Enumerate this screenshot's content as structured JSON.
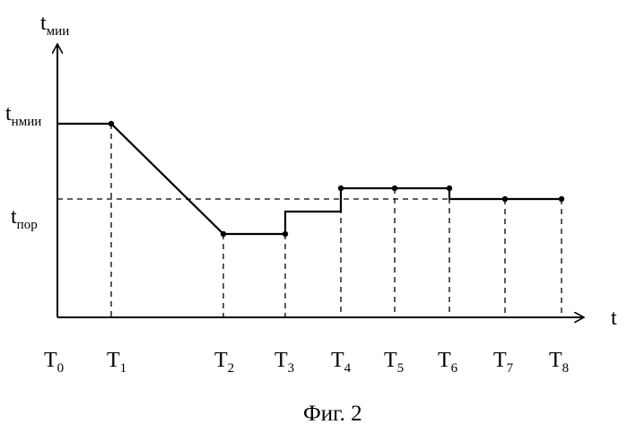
{
  "figure": {
    "caption": "Фиг. 2",
    "y_axis": {
      "base": "t",
      "sub": "мии"
    },
    "x_axis": {
      "label": "t"
    },
    "y_ticks": [
      {
        "base": "t",
        "sub": "нмии"
      },
      {
        "base": "t",
        "sub": "пор"
      }
    ],
    "x_ticks": [
      {
        "base": "T",
        "sub": "0"
      },
      {
        "base": "T",
        "sub": "1"
      },
      {
        "base": "T",
        "sub": "2"
      },
      {
        "base": "T",
        "sub": "3"
      },
      {
        "base": "T",
        "sub": "4"
      },
      {
        "base": "T",
        "sub": "5"
      },
      {
        "base": "T",
        "sub": "6"
      },
      {
        "base": "T",
        "sub": "7"
      },
      {
        "base": "T",
        "sub": "8"
      }
    ]
  }
}
